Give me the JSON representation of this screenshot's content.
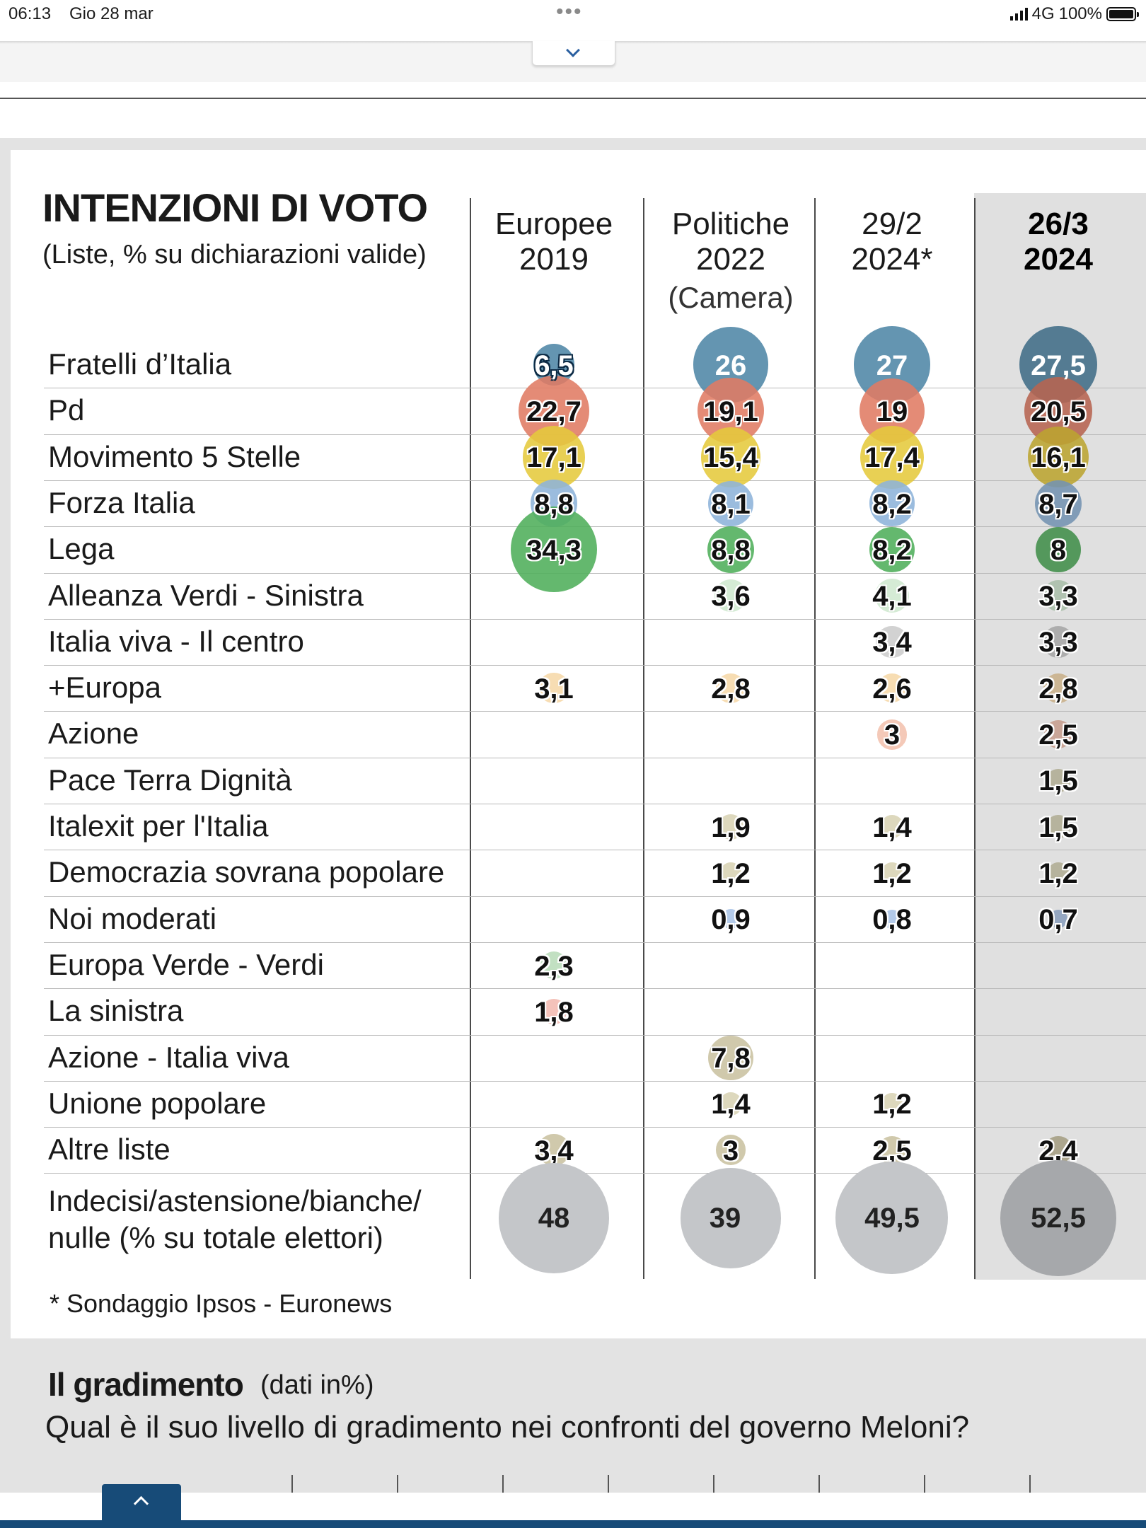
{
  "status_bar": {
    "time": "06:13",
    "date": "Gio 28 mar",
    "network": "4G",
    "battery": "100%"
  },
  "chart_data": {
    "type": "table",
    "title": "INTENZIONI DI VOTO",
    "subtitle": "(Liste, % su dichiarazioni valide)",
    "columns": [
      {
        "label": "Europee\n2019",
        "sublabel": ""
      },
      {
        "label": "Politiche\n2022",
        "sublabel": "(Camera)"
      },
      {
        "label": "29/2\n2024*",
        "sublabel": ""
      },
      {
        "label": "26/3\n2024",
        "sublabel": ""
      }
    ],
    "rows": [
      {
        "label": "Fratelli d’Italia",
        "color": "#4f86a6",
        "values": [
          "6,5",
          "26",
          "27",
          "27,5"
        ]
      },
      {
        "label": "Pd",
        "color": "#e07b63",
        "values": [
          "22,7",
          "19,1",
          "19",
          "20,5"
        ]
      },
      {
        "label": "Movimento 5 Stelle",
        "color": "#e5c93c",
        "values": [
          "17,1",
          "15,4",
          "17,4",
          "16,1"
        ]
      },
      {
        "label": "Forza Italia",
        "color": "#8db3d9",
        "values": [
          "8,8",
          "8,1",
          "8,2",
          "8,7"
        ]
      },
      {
        "label": "Lega",
        "color": "#4fae5a",
        "values": [
          "34,3",
          "8,8",
          "8,2",
          "8"
        ]
      },
      {
        "label": "Alleanza Verdi - Sinistra",
        "color": "#cfe8cf",
        "values": [
          "",
          "3,6",
          "4,1",
          "3,3"
        ]
      },
      {
        "label": "Italia viva - Il centro",
        "color": "#cccccc",
        "values": [
          "",
          "",
          "3,4",
          "3,3"
        ]
      },
      {
        "label": "+Europa",
        "color": "#f6d8a8",
        "values": [
          "3,1",
          "2,8",
          "2,6",
          "2,8"
        ]
      },
      {
        "label": "Azione",
        "color": "#f3c2ae",
        "values": [
          "",
          "",
          "3",
          "2,5"
        ]
      },
      {
        "label": "Pace Terra Dignità",
        "color": "#d8d3b4",
        "values": [
          "",
          "",
          "",
          "1,5"
        ]
      },
      {
        "label": "Italexit per l'Italia",
        "color": "#d8d3b4",
        "values": [
          "",
          "1,9",
          "1,4",
          "1,5"
        ]
      },
      {
        "label": "Democrazia sovrana popolare",
        "color": "#d8d3b4",
        "values": [
          "",
          "1,2",
          "1,2",
          "1,2"
        ]
      },
      {
        "label": "Noi moderati",
        "color": "#a9c3e6",
        "values": [
          "",
          "0,9",
          "0,8",
          "0,7"
        ]
      },
      {
        "label": "Europa Verde - Verdi",
        "color": "#b9dcb9",
        "values": [
          "2,3",
          "",
          "",
          ""
        ]
      },
      {
        "label": "La sinistra",
        "color": "#f3b9b0",
        "values": [
          "1,8",
          "",
          "",
          ""
        ]
      },
      {
        "label": "Azione - Italia viva",
        "color": "#c9c2a0",
        "values": [
          "",
          "7,8",
          "",
          ""
        ]
      },
      {
        "label": "Unione popolare",
        "color": "#d8d3b4",
        "values": [
          "",
          "1,4",
          "1,2",
          ""
        ]
      },
      {
        "label": "Altre liste",
        "color": "#c9c2a0",
        "values": [
          "3,4",
          "3",
          "2,5",
          "2,4"
        ]
      }
    ],
    "undecided": {
      "label": "Indecisi/astensione/bianche/ nulle (% su totale elettori)",
      "color": "#c4c6c9",
      "values": [
        "48",
        "39",
        "49,5",
        "52,5"
      ]
    },
    "highlight_column": 3,
    "highlight_color": "#e0e0e0"
  },
  "footnote": "* Sondaggio Ipsos - Euronews",
  "gradimento": {
    "title": "Il gradimento",
    "note": "(dati in%)",
    "question": "Qual è il suo livello di gradimento nei confronti del governo Meloni?"
  },
  "icons": {
    "pull_down": "chevron-down-icon",
    "scroll_top": "chevron-up-icon",
    "signal": "cellular-signal-icon",
    "battery": "battery-icon"
  }
}
